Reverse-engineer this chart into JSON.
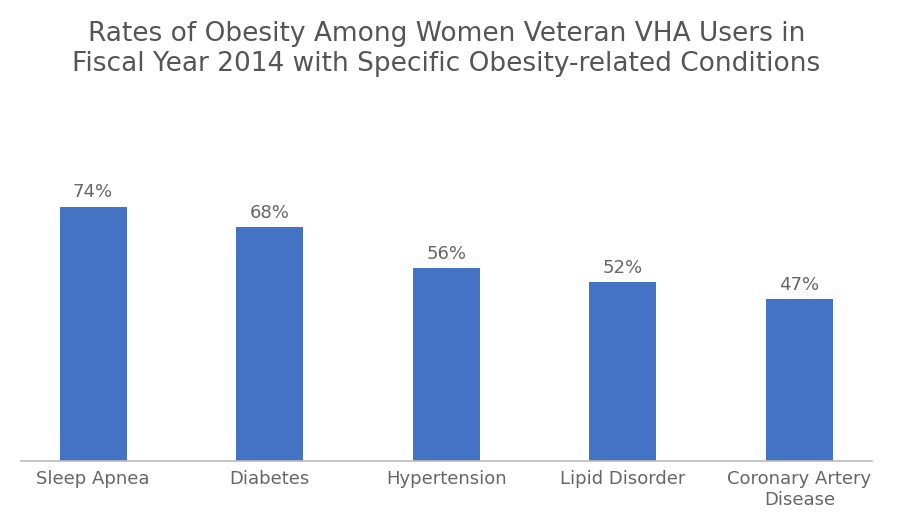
{
  "title": "Rates of Obesity Among Women Veteran VHA Users in\nFiscal Year 2014 with Specific Obesity-related Conditions",
  "categories": [
    "Sleep Apnea",
    "Diabetes",
    "Hypertension",
    "Lipid Disorder",
    "Coronary Artery\nDisease"
  ],
  "values": [
    74,
    68,
    56,
    52,
    47
  ],
  "labels": [
    "74%",
    "68%",
    "56%",
    "52%",
    "47%"
  ],
  "bar_color": "#4472C4",
  "background_color": "#FFFFFF",
  "title_fontsize": 19,
  "label_fontsize": 13,
  "tick_fontsize": 13,
  "ylim": [
    0,
    120
  ],
  "bar_width": 0.38
}
